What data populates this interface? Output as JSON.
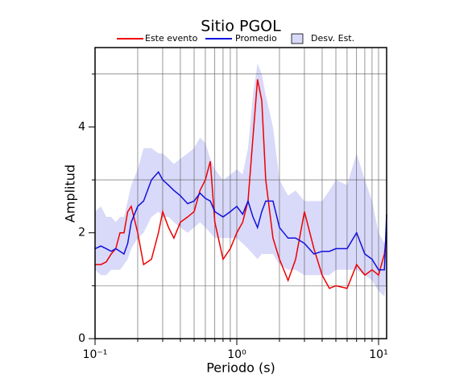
{
  "chart_data": {
    "type": "line",
    "title": "Sitio PGOL",
    "xlabel": "Periodo (s)",
    "ylabel": "Amplitud",
    "xscale": "log",
    "xlim": [
      0.1,
      11.4
    ],
    "ylim": [
      0,
      5.5
    ],
    "xticks": [
      {
        "value": 0.1,
        "label": "10⁻¹"
      },
      {
        "value": 1,
        "label": "10⁰"
      },
      {
        "value": 10,
        "label": "10¹"
      }
    ],
    "xgrid": [
      0.2,
      0.3,
      0.4,
      0.5,
      0.6,
      0.7,
      0.8,
      0.9,
      1,
      2,
      3,
      4,
      5,
      6,
      7,
      8,
      9,
      10
    ],
    "yticks": [
      0,
      2,
      4
    ],
    "ygrid": [
      1,
      3,
      5
    ],
    "x": [
      0.1,
      0.11,
      0.12,
      0.13,
      0.14,
      0.15,
      0.16,
      0.17,
      0.18,
      0.2,
      0.22,
      0.25,
      0.28,
      0.3,
      0.33,
      0.36,
      0.4,
      0.45,
      0.5,
      0.55,
      0.6,
      0.65,
      0.7,
      0.8,
      0.9,
      1.0,
      1.1,
      1.2,
      1.3,
      1.4,
      1.5,
      1.6,
      1.8,
      2.0,
      2.3,
      2.6,
      3.0,
      3.5,
      4,
      4.5,
      5,
      6,
      7,
      8,
      9,
      10,
      11,
      11.4
    ],
    "band": {
      "name": "Desv. Est.",
      "color": "#d9d9f9",
      "low": [
        1.3,
        1.2,
        1.2,
        1.3,
        1.3,
        1.3,
        1.4,
        1.5,
        1.7,
        1.9,
        2.0,
        2.3,
        2.4,
        2.3,
        2.3,
        2.2,
        2.1,
        2.0,
        2.1,
        2.2,
        2.1,
        2.0,
        1.9,
        1.9,
        1.9,
        1.9,
        1.8,
        1.7,
        1.6,
        1.5,
        1.6,
        1.6,
        1.6,
        1.4,
        1.3,
        1.3,
        1.2,
        1.2,
        1.2,
        1.2,
        1.3,
        1.3,
        1.3,
        1.2,
        1.1,
        0.9,
        0.8,
        1.2
      ],
      "high": [
        2.4,
        2.5,
        2.3,
        2.3,
        2.2,
        2.3,
        2.3,
        2.6,
        2.9,
        3.2,
        3.6,
        3.6,
        3.5,
        3.5,
        3.4,
        3.3,
        3.4,
        3.5,
        3.6,
        3.8,
        3.7,
        3.4,
        3.2,
        3.0,
        3.1,
        3.2,
        3.1,
        3.6,
        4.6,
        5.2,
        5.0,
        4.6,
        4.0,
        3.0,
        2.7,
        2.8,
        2.6,
        2.6,
        2.6,
        2.8,
        3.0,
        2.9,
        3.5,
        3.0,
        2.6,
        2.0,
        1.8,
        2.0
      ]
    },
    "series": [
      {
        "name": "Este evento",
        "color": "#ee0000",
        "values": [
          1.4,
          1.4,
          1.45,
          1.6,
          1.7,
          2.0,
          2.0,
          2.4,
          2.5,
          2.0,
          1.4,
          1.5,
          2.0,
          2.4,
          2.1,
          1.9,
          2.2,
          2.3,
          2.4,
          2.8,
          3.0,
          3.35,
          2.2,
          1.5,
          1.7,
          2.0,
          2.2,
          2.6,
          3.8,
          4.9,
          4.5,
          3.0,
          1.9,
          1.5,
          1.1,
          1.5,
          2.4,
          1.7,
          1.2,
          0.95,
          1.0,
          0.95,
          1.4,
          1.2,
          1.3,
          1.2,
          1.6,
          2.0
        ]
      },
      {
        "name": "Promedio",
        "color": "#1111dd",
        "values": [
          1.7,
          1.75,
          1.7,
          1.65,
          1.7,
          1.65,
          1.6,
          1.8,
          2.2,
          2.5,
          2.6,
          3.0,
          3.15,
          3.0,
          2.9,
          2.8,
          2.7,
          2.55,
          2.6,
          2.75,
          2.65,
          2.6,
          2.4,
          2.3,
          2.4,
          2.5,
          2.35,
          2.6,
          2.3,
          2.1,
          2.4,
          2.6,
          2.6,
          2.1,
          1.9,
          1.9,
          1.8,
          1.6,
          1.65,
          1.65,
          1.7,
          1.7,
          2.0,
          1.6,
          1.5,
          1.3,
          1.3,
          2.35
        ]
      }
    ]
  }
}
